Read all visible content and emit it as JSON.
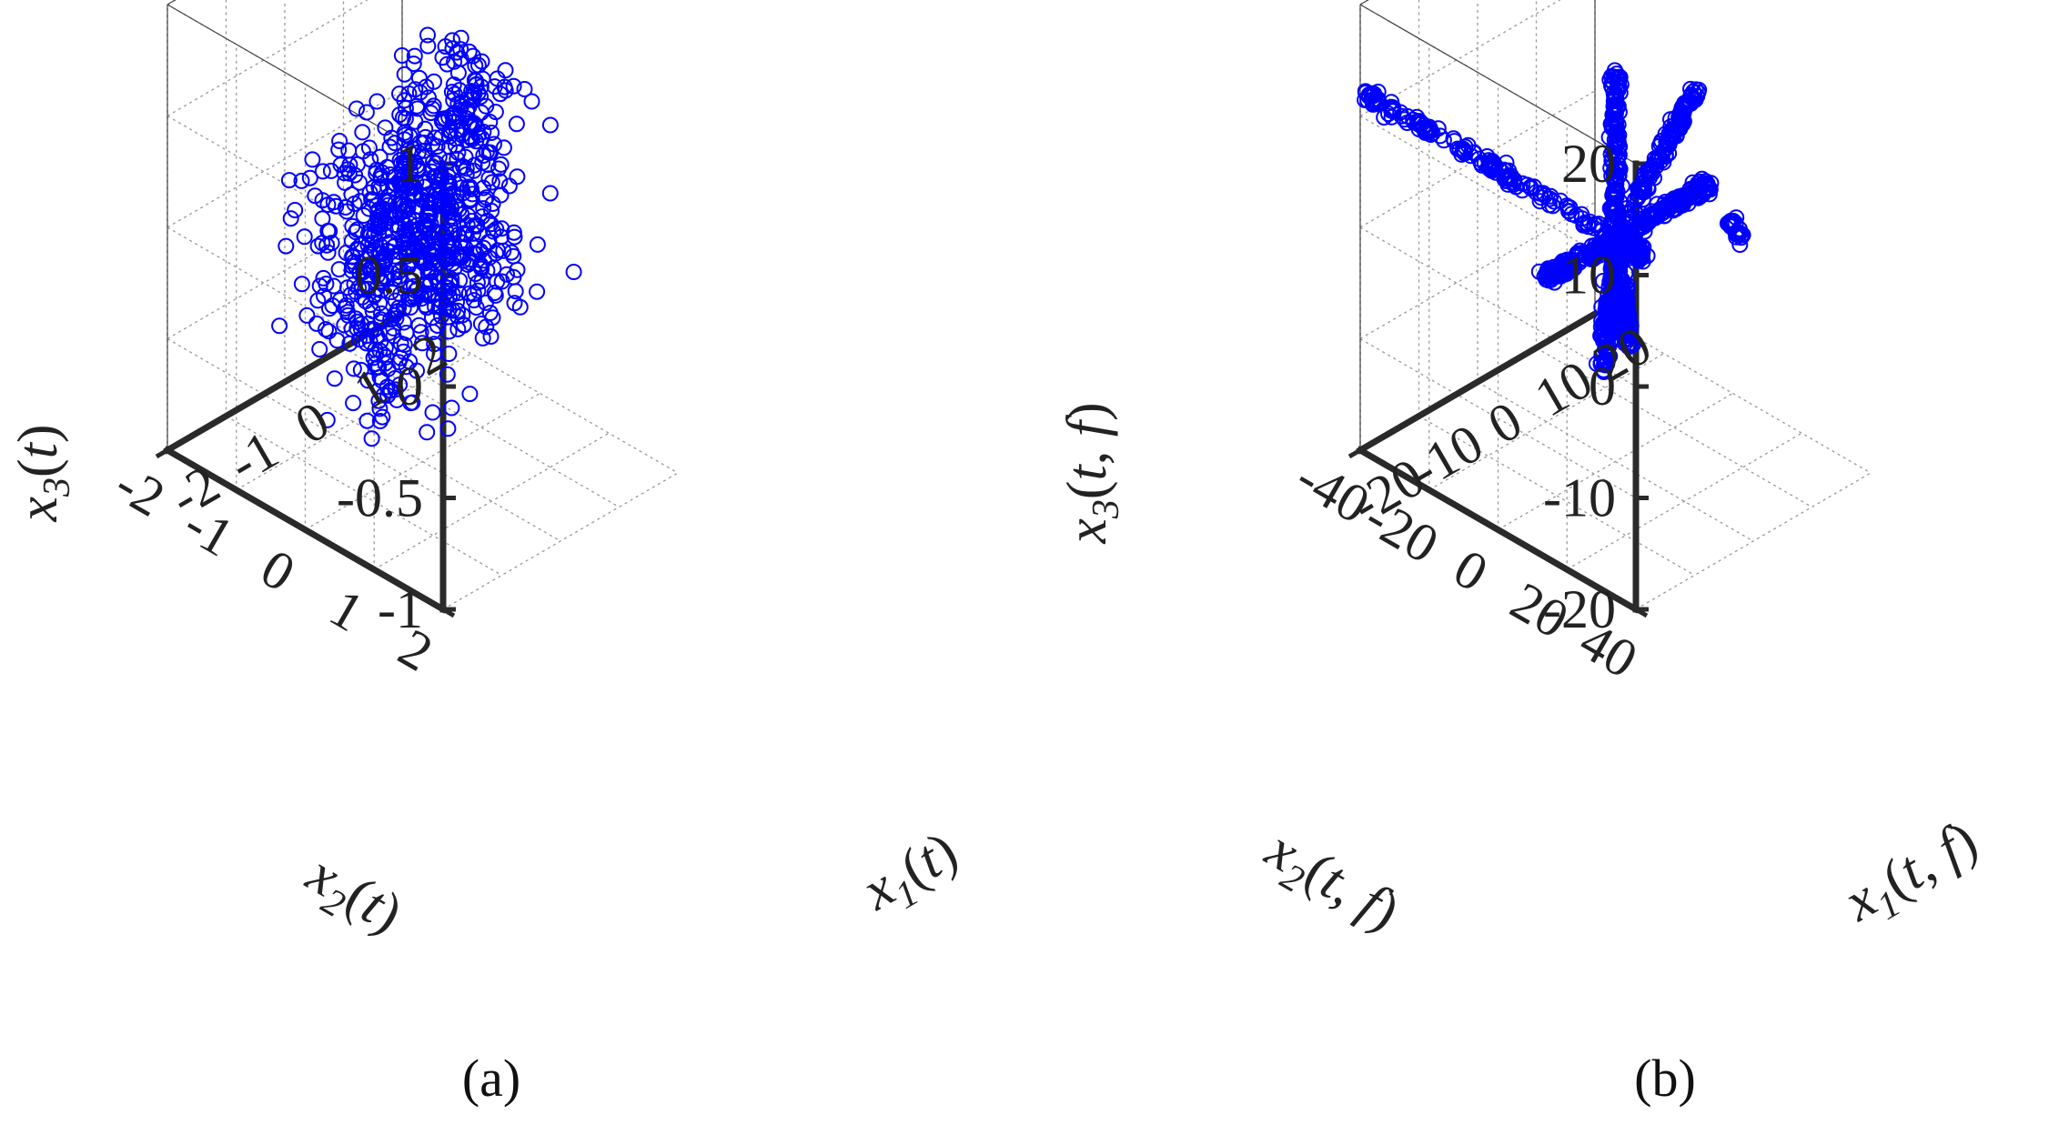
{
  "figure": {
    "panels": [
      {
        "id": "a",
        "caption": "(a)",
        "zlabel": "x3(t)",
        "xlabel": "x1(t)",
        "ylabel": "x2(t)"
      },
      {
        "id": "b",
        "caption": "(b)",
        "zlabel": "x3(t, f)",
        "xlabel": "x1(t, f)",
        "ylabel": "x2(t, f)"
      }
    ]
  },
  "chart_data": [
    {
      "type": "scatter",
      "dimensions": 3,
      "marker": "open-circle",
      "color": "#0000ff",
      "grid": true,
      "xlabel": "x1(t)",
      "ylabel": "x2(t)",
      "zlabel": "x3(t)",
      "xlim": [
        -2,
        2
      ],
      "ylim": [
        -2,
        2
      ],
      "zlim": [
        -1,
        1
      ],
      "xticks": [
        "-2",
        "-1",
        "0",
        "1",
        "2"
      ],
      "yticks": [
        "-2",
        "-1",
        "0",
        "1",
        "2"
      ],
      "zticks": [
        "-1",
        "-0.5",
        "0",
        "0.5",
        "1"
      ],
      "series": [
        {
          "description_points": [
            [
              -1.0,
              0.3,
              0.2
            ],
            [
              -1.2,
              0.4,
              0.3
            ],
            [
              -0.8,
              0.5,
              0.1
            ],
            [
              -1.1,
              0.2,
              -0.2
            ],
            [
              -0.9,
              0.6,
              0.4
            ],
            [
              -1.3,
              0.1,
              0.0
            ],
            [
              -0.7,
              0.3,
              -0.3
            ],
            [
              -1.0,
              0.0,
              0.45
            ],
            [
              -1.1,
              0.5,
              -0.45
            ],
            [
              -0.6,
              0.4,
              0.25
            ],
            [
              -1.2,
              0.3,
              0.35
            ],
            [
              -0.9,
              0.1,
              -0.1
            ],
            [
              0.9,
              -0.3,
              0.3
            ],
            [
              1.1,
              -0.2,
              0.1
            ],
            [
              0.8,
              -0.5,
              -0.2
            ],
            [
              1.2,
              -0.4,
              0.4
            ],
            [
              1.0,
              -0.1,
              -0.35
            ],
            [
              0.7,
              -0.6,
              0.2
            ],
            [
              1.3,
              -0.3,
              -0.1
            ],
            [
              0.9,
              -0.2,
              0.5
            ],
            [
              1.1,
              -0.5,
              -0.4
            ],
            [
              0.6,
              -0.4,
              0.0
            ],
            [
              1.0,
              -0.6,
              0.3
            ],
            [
              1.2,
              -0.1,
              -0.25
            ],
            [
              0.0,
              0.0,
              0.05
            ],
            [
              -0.3,
              0.2,
              0.1
            ],
            [
              0.3,
              -0.2,
              -0.1
            ],
            [
              0.1,
              0.1,
              0.2
            ]
          ]
        }
      ]
    },
    {
      "type": "scatter",
      "dimensions": 3,
      "marker": "open-circle",
      "color": "#0000ff",
      "grid": true,
      "xlabel": "x1(t, f)",
      "ylabel": "x2(t, f)",
      "zlabel": "x3(t, f)",
      "xlim": [
        -20,
        20
      ],
      "ylim": [
        -40,
        40
      ],
      "zlim": [
        -20,
        20
      ],
      "xticks": [
        "-20",
        "-10",
        "0",
        "10",
        "20"
      ],
      "yticks": [
        "-40",
        "-20",
        "0",
        "20",
        "40"
      ],
      "zticks": [
        "-20",
        "-10",
        "0",
        "10",
        "20"
      ],
      "series": [
        {
          "rays": [
            {
              "direction": [
                0,
                -1,
                0
              ],
              "extent": 36
            },
            {
              "direction": [
                0,
                1,
                0
              ],
              "extent": 4
            },
            {
              "direction": [
                1,
                0,
                0
              ],
              "extent": 16
            },
            {
              "direction": [
                0,
                0,
                1
              ],
              "extent": 15
            },
            {
              "direction": [
                -1,
                0,
                0
              ],
              "extent": 12
            },
            {
              "direction": [
                0.6,
                0.4,
                0.7
              ],
              "extent": 17
            },
            {
              "direction": [
                -0.5,
                0.6,
                -0.6
              ],
              "extent": 14
            },
            {
              "direction": [
                0.3,
                -0.2,
                -0.9
              ],
              "extent": 12
            }
          ]
        }
      ]
    }
  ]
}
